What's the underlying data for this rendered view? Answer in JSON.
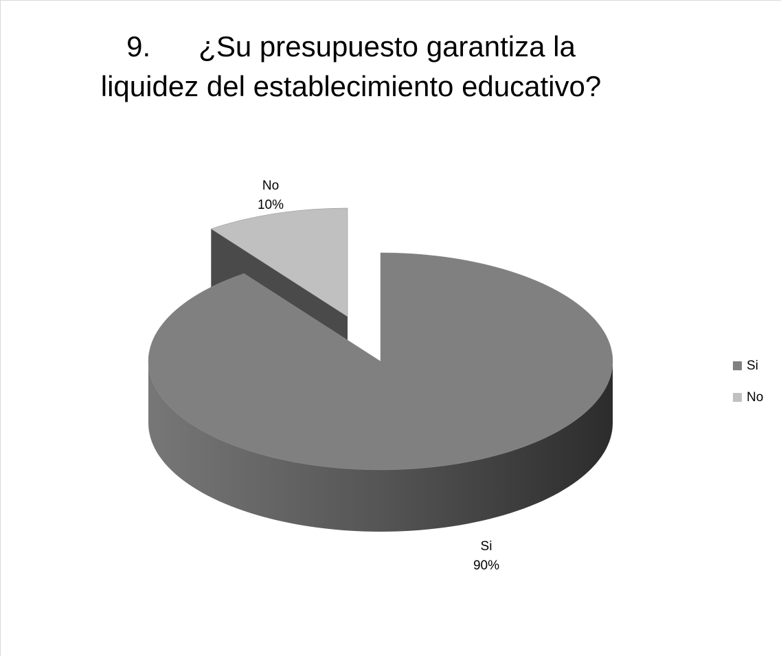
{
  "chart_data": {
    "type": "pie",
    "title": "9.      ¿Su presupuesto garantiza la liquidez del establecimiento educativo?",
    "categories": [
      "Si",
      "No"
    ],
    "values": [
      90,
      10
    ],
    "value_labels": [
      "90%",
      "10%"
    ],
    "colors": [
      "#808080",
      "#c0c0c0"
    ],
    "legend": "right",
    "three_d": true
  }
}
